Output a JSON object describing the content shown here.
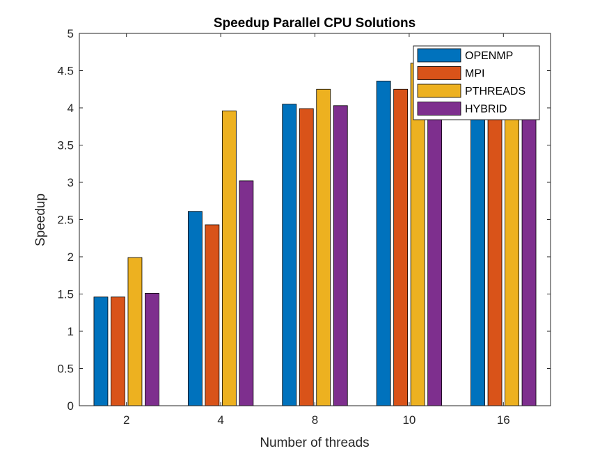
{
  "chart_data": {
    "type": "bar",
    "title": "Speedup Parallel CPU Solutions",
    "xlabel": "Number of threads",
    "ylabel": "Speedup",
    "categories": [
      "2",
      "4",
      "8",
      "10",
      "16"
    ],
    "ylim": [
      0,
      5
    ],
    "yticks": [
      "0",
      "0.5",
      "1",
      "1.5",
      "2",
      "2.5",
      "3",
      "3.5",
      "4",
      "4.5",
      "5"
    ],
    "grid": false,
    "legend_position": "top-right",
    "series": [
      {
        "name": "OPENMP",
        "color": "#0072BD",
        "values": [
          1.46,
          2.61,
          4.05,
          4.36,
          4.55
        ]
      },
      {
        "name": "MPI",
        "color": "#D95319",
        "values": [
          1.46,
          2.43,
          3.99,
          4.25,
          4.25
        ]
      },
      {
        "name": "PTHREADS",
        "color": "#EDB120",
        "values": [
          1.99,
          3.96,
          4.25,
          4.6,
          4.6
        ]
      },
      {
        "name": "HYBRID",
        "color": "#7E2F8E",
        "values": [
          1.51,
          3.02,
          4.03,
          4.1,
          4.3
        ]
      }
    ]
  }
}
